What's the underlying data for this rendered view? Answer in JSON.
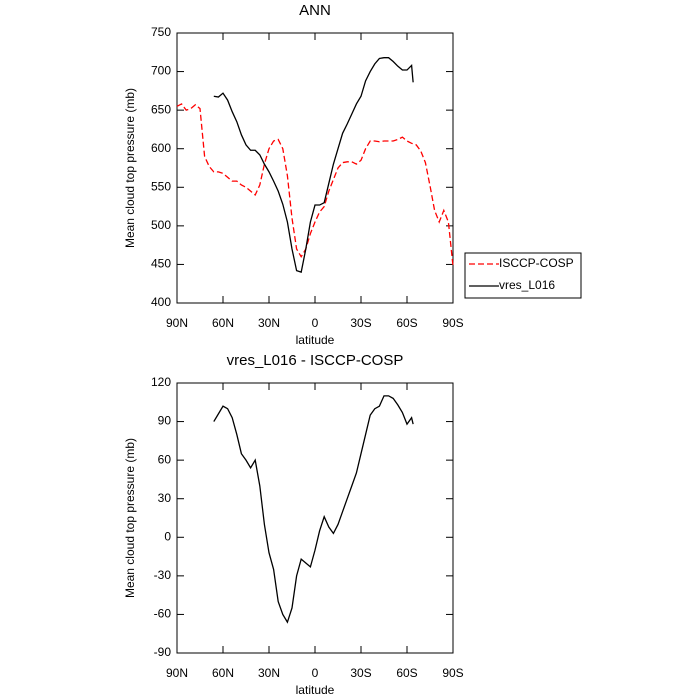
{
  "chart_data": [
    {
      "type": "line",
      "title": "ANN",
      "x_label": "latitude",
      "y_label": "Mean cloud top pressure (mb)",
      "xlim": [
        90,
        -90
      ],
      "xticks": [
        {
          "value": 90,
          "label": "90N"
        },
        {
          "value": 60,
          "label": "60N"
        },
        {
          "value": 30,
          "label": "30N"
        },
        0,
        {
          "value": -30,
          "label": "30S"
        },
        {
          "value": -60,
          "label": "60S"
        },
        {
          "value": -90,
          "label": "90S"
        }
      ],
      "ylim": [
        400,
        750
      ],
      "yticks": [
        400,
        450,
        500,
        550,
        600,
        650,
        700,
        750
      ],
      "legend": "right",
      "series": [
        {
          "name": "ISCCP-COSP",
          "color": "#ff0000",
          "line_style": "dashed",
          "x": [
            90,
            87,
            84,
            81,
            78,
            75,
            72,
            69,
            66,
            63,
            60,
            57,
            54,
            51,
            48,
            45,
            42,
            39,
            36,
            33,
            30,
            27,
            24,
            21,
            18,
            15,
            12,
            9,
            6,
            3,
            0,
            -3,
            -6,
            -9,
            -12,
            -15,
            -18,
            -21,
            -24,
            -27,
            -30,
            -33,
            -36,
            -39,
            -42,
            -45,
            -48,
            -51,
            -54,
            -57,
            -60,
            -63,
            -66,
            -69,
            -72,
            -75,
            -78,
            -81,
            -84,
            -87,
            -90
          ],
          "values": [
            655,
            658,
            650,
            652,
            657,
            652,
            590,
            577,
            570,
            570,
            568,
            563,
            558,
            558,
            553,
            550,
            545,
            540,
            553,
            580,
            600,
            610,
            612,
            600,
            565,
            510,
            470,
            460,
            470,
            490,
            505,
            518,
            525,
            545,
            560,
            575,
            582,
            583,
            583,
            580,
            585,
            600,
            610,
            610,
            609,
            610,
            610,
            610,
            612,
            615,
            610,
            607,
            605,
            597,
            582,
            552,
            520,
            505,
            520,
            505,
            448
          ]
        },
        {
          "name": "vres_L016",
          "color": "#000000",
          "line_style": "solid",
          "x": [
            66,
            63,
            60,
            57,
            54,
            51,
            48,
            45,
            42,
            39,
            36,
            33,
            30,
            27,
            24,
            21,
            18,
            15,
            12,
            9,
            6,
            3,
            0,
            -3,
            -6,
            -9,
            -12,
            -15,
            -18,
            -21,
            -24,
            -27,
            -30,
            -33,
            -36,
            -39,
            -42,
            -45,
            -48,
            -51,
            -54,
            -57,
            -60,
            -63,
            -64
          ],
          "values": [
            668,
            667,
            672,
            663,
            648,
            635,
            618,
            605,
            598,
            598,
            592,
            580,
            570,
            558,
            545,
            528,
            505,
            470,
            442,
            440,
            470,
            505,
            527,
            527,
            530,
            555,
            580,
            600,
            620,
            632,
            645,
            658,
            668,
            688,
            700,
            710,
            717,
            718,
            718,
            713,
            707,
            702,
            702,
            708,
            686
          ]
        }
      ]
    },
    {
      "type": "line",
      "title": "vres_L016 - ISCCP-COSP",
      "x_label": "latitude",
      "y_label": "Mean cloud top pressure (mb)",
      "xlim": [
        90,
        -90
      ],
      "xticks": [
        {
          "value": 90,
          "label": "90N"
        },
        {
          "value": 60,
          "label": "60N"
        },
        {
          "value": 30,
          "label": "30N"
        },
        0,
        {
          "value": -30,
          "label": "30S"
        },
        {
          "value": -60,
          "label": "60S"
        },
        {
          "value": -90,
          "label": "90S"
        }
      ],
      "ylim": [
        -90,
        120
      ],
      "yticks": [
        -90,
        -60,
        -30,
        0,
        30,
        60,
        90,
        120
      ],
      "series": [
        {
          "color": "#000000",
          "line_style": "solid",
          "x": [
            66,
            63,
            60,
            57,
            54,
            51,
            48,
            45,
            42,
            39,
            36,
            33,
            30,
            27,
            24,
            21,
            18,
            15,
            12,
            9,
            6,
            3,
            0,
            -3,
            -6,
            -9,
            -12,
            -15,
            -18,
            -21,
            -24,
            -27,
            -30,
            -33,
            -36,
            -39,
            -42,
            -45,
            -48,
            -51,
            -54,
            -57,
            -60,
            -63,
            -64
          ],
          "values": [
            90,
            96,
            102,
            100,
            93,
            80,
            65,
            60,
            54,
            60,
            40,
            10,
            -12,
            -25,
            -50,
            -60,
            -66,
            -55,
            -30,
            -17,
            -20,
            -23,
            -10,
            5,
            16,
            8,
            3,
            10,
            20,
            30,
            40,
            50,
            65,
            80,
            95,
            100,
            102,
            110,
            110,
            108,
            103,
            97,
            88,
            93,
            88
          ]
        }
      ]
    }
  ]
}
